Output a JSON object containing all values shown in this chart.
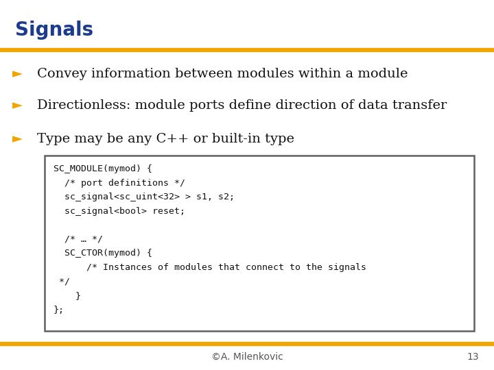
{
  "title": "Signals",
  "title_color": "#1B3B8C",
  "title_fontsize": 20,
  "background_color": "#FFFFFF",
  "orange_line_color": "#F0A500",
  "gray_line_color": "#888888",
  "bullet_color": "#F0A500",
  "bullet_symbol": "►",
  "bullet_items": [
    "Convey information between modules within a module",
    "Directionless: module ports define direction of data transfer",
    "Type may be any C++ or built-in type"
  ],
  "bullet_fontsize": 14,
  "bullet_text_color": "#111111",
  "code_lines": [
    "SC_MODULE(mymod) {",
    "  /* port definitions */",
    "  sc_signal<sc_uint<32> > s1, s2;",
    "  sc_signal<bool> reset;",
    "",
    "  /* … */",
    "  SC_CTOR(mymod) {",
    "      /* Instances of modules that connect to the signals",
    " */",
    "    }",
    "};"
  ],
  "code_fontsize": 9.5,
  "code_text_color": "#111111",
  "code_bg_color": "#FFFFFF",
  "code_border_color": "#606060",
  "footer_text": "©A. Milenkovic",
  "footer_page": "13",
  "footer_color": "#555555",
  "footer_fontsize": 10
}
